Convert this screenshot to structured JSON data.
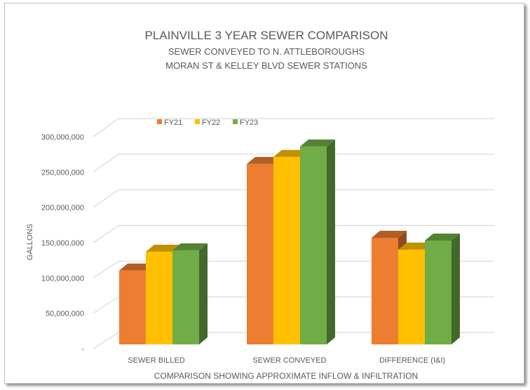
{
  "chart_data": {
    "type": "bar",
    "bar_style": "3d-clustered-column",
    "title": "PLAINVILLE 3 YEAR SEWER COMPARISON",
    "subtitle_lines": [
      "SEWER CONVEYED TO N. ATTLEBOROUGHS",
      "MORAN ST & KELLEY BLVD SEWER STATIONS"
    ],
    "xlabel": "COMPARISON SHOWING APPROXIMATE INFLOW & INFILTRATION",
    "ylabel": "GALLONS",
    "categories": [
      "SEWER BILLED",
      "SEWER CONVEYED",
      "DIFFERENCE (I&I)"
    ],
    "series": [
      {
        "name": "FY21",
        "color": "#ED7D31",
        "values": [
          106000000,
          259000000,
          153000000
        ]
      },
      {
        "name": "FY22",
        "color": "#FFC000",
        "values": [
          133000000,
          269000000,
          136000000
        ]
      },
      {
        "name": "FY23",
        "color": "#70AD47",
        "values": [
          135000000,
          284000000,
          149000000
        ]
      }
    ],
    "ylim": [
      0,
      300000000
    ],
    "yticks": [
      "-",
      "50,000,000",
      "100,000,000",
      "150,000,000",
      "200,000,000",
      "250,000,000",
      "300,000,000"
    ],
    "grid": true,
    "legend_position": "top"
  }
}
